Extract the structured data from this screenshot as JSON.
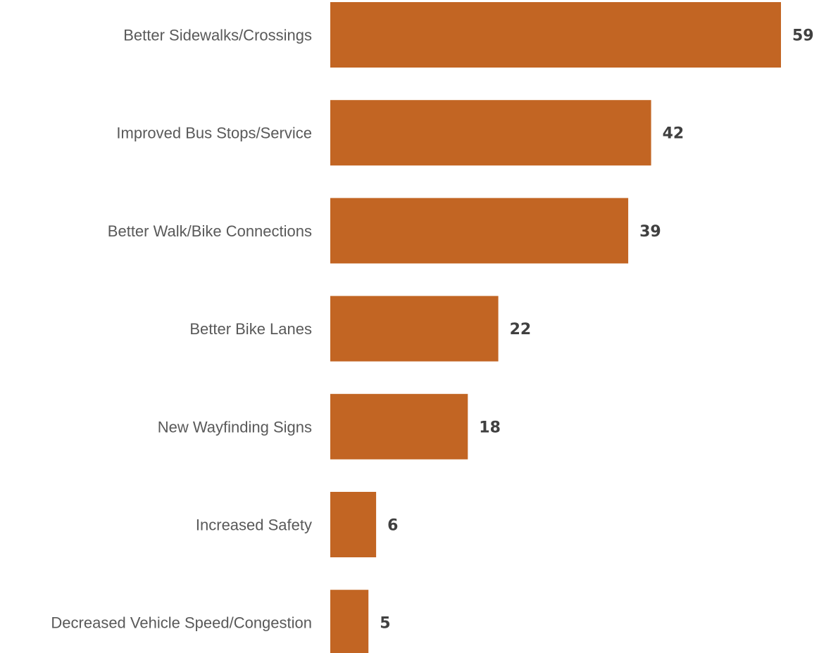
{
  "chart_data": {
    "type": "bar",
    "orientation": "horizontal",
    "categories": [
      "Better Sidewalks/Crossings",
      "Improved Bus Stops/Service",
      "Better Walk/Bike Connections",
      "Better Bike Lanes",
      "New Wayfinding Signs",
      "Increased Safety",
      "Decreased Vehicle Speed/Congestion"
    ],
    "values": [
      59,
      42,
      39,
      22,
      18,
      6,
      5
    ],
    "title": "",
    "xlabel": "",
    "ylabel": "",
    "xlim": [
      0,
      59
    ],
    "grid": false,
    "legend": "none",
    "data_labels": true,
    "bar_color": "#C26523"
  }
}
